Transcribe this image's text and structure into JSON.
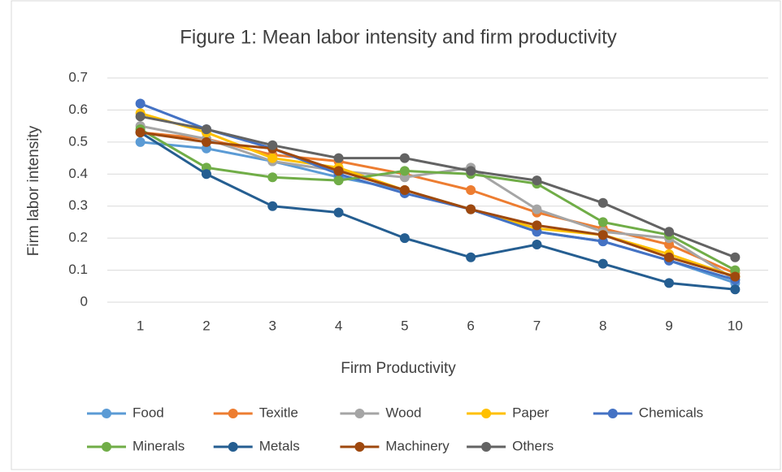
{
  "chart_data": {
    "type": "line",
    "title": "Figure 1: Mean labor intensity and firm productivity",
    "x_label": "Firm Productivity",
    "y_label": "Firm labor intensity",
    "categories": [
      "1",
      "2",
      "3",
      "4",
      "5",
      "6",
      "7",
      "8",
      "9",
      "10"
    ],
    "series": [
      {
        "name": "Food",
        "color": "#5b9bd5",
        "values": [
          0.5,
          0.48,
          0.44,
          0.39,
          0.35,
          0.29,
          0.22,
          0.19,
          0.13,
          0.06
        ]
      },
      {
        "name": "Texitle",
        "color": "#ed7d31",
        "values": [
          0.53,
          0.51,
          0.46,
          0.44,
          0.4,
          0.35,
          0.28,
          0.23,
          0.18,
          0.09
        ]
      },
      {
        "name": "Wood",
        "color": "#a5a5a5",
        "values": [
          0.55,
          0.51,
          0.44,
          0.41,
          0.39,
          0.42,
          0.29,
          0.22,
          0.2,
          0.07
        ]
      },
      {
        "name": "Paper",
        "color": "#ffc000",
        "values": [
          0.59,
          0.53,
          0.45,
          0.42,
          0.35,
          0.29,
          0.23,
          0.21,
          0.15,
          0.08
        ]
      },
      {
        "name": "Chemicals",
        "color": "#4472c4",
        "values": [
          0.62,
          0.54,
          0.48,
          0.4,
          0.34,
          0.29,
          0.22,
          0.19,
          0.13,
          0.07
        ]
      },
      {
        "name": "Minerals",
        "color": "#70ad47",
        "values": [
          0.54,
          0.42,
          0.39,
          0.38,
          0.41,
          0.4,
          0.37,
          0.25,
          0.21,
          0.1
        ]
      },
      {
        "name": "Metals",
        "color": "#255e91",
        "values": [
          0.53,
          0.4,
          0.3,
          0.28,
          0.2,
          0.14,
          0.18,
          0.12,
          0.06,
          0.04
        ]
      },
      {
        "name": "Machinery",
        "color": "#9e480e",
        "values": [
          0.53,
          0.5,
          0.48,
          0.41,
          0.35,
          0.29,
          0.24,
          0.21,
          0.14,
          0.08
        ]
      },
      {
        "name": "Others",
        "color": "#636363",
        "values": [
          0.58,
          0.54,
          0.49,
          0.45,
          0.45,
          0.41,
          0.38,
          0.31,
          0.22,
          0.14
        ]
      }
    ],
    "ylim": [
      0,
      0.7
    ],
    "yticks": [
      0,
      {
        "value": 0.1,
        "label": "0.1"
      },
      {
        "value": 0.2,
        "label": "0.2"
      },
      {
        "value": 0.3,
        "label": "0.3"
      },
      {
        "value": 0.4,
        "label": "0.4"
      },
      {
        "value": 0.5,
        "label": "0.5"
      },
      {
        "value": 0.6,
        "label": "0.6"
      },
      {
        "value": 0.7,
        "label": "0.7"
      }
    ],
    "grid": true,
    "legend": "bottom"
  }
}
